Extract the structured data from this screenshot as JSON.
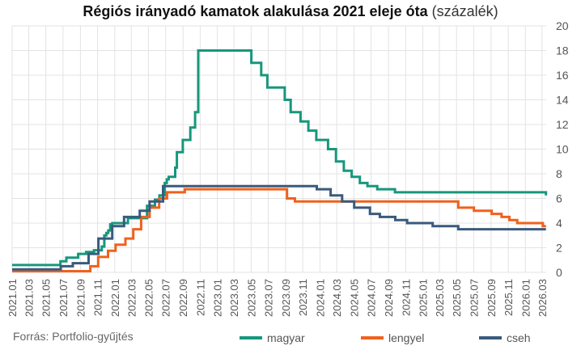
{
  "title_bold": "Régiós irányadó kamatok alakulása 2021 eleje óta",
  "title_light": "(százalék)",
  "source": "Forrás: Portfolio-gyűjtés",
  "colors": {
    "magyar": "#17977c",
    "lengyel": "#f0611d",
    "cseh": "#3a5a7d",
    "grid": "#e3e3e3"
  },
  "chart_data": {
    "type": "line",
    "title": "Régiós irányadó kamatok alakulása 2021 eleje óta (százalék)",
    "ylim": [
      0,
      20
    ],
    "yticks": [
      "0",
      "2",
      "4",
      "6",
      "8",
      "10",
      "12",
      "14",
      "16",
      "18",
      "20"
    ],
    "x_range": [
      "2021.01",
      "2026.03"
    ],
    "xticks": [
      "2021.01",
      "2021.03",
      "2021.05",
      "2021.07",
      "2021.09",
      "2021.11",
      "2022.01",
      "2022.03",
      "2022.05",
      "2022.07",
      "2022.09",
      "2022.11",
      "2023.01",
      "2023.03",
      "2023.05",
      "2023.07",
      "2023.09",
      "2023.11",
      "2024.01",
      "2024.03",
      "2024.05",
      "2024.07",
      "2024.09",
      "2024.11",
      "2025.01",
      "2025.03",
      "2025.05",
      "2025.07",
      "2025.09",
      "2025.11",
      "2026.01",
      "2026.03"
    ],
    "grid": true,
    "legend_position": "bottom",
    "series": [
      {
        "name": "magyar",
        "color": "#17977c",
        "points": [
          [
            "2021-01-01",
            0.6
          ],
          [
            "2021-06-22",
            0.9
          ],
          [
            "2021-07-13",
            1.2
          ],
          [
            "2021-08-24",
            1.5
          ],
          [
            "2021-09-21",
            1.65
          ],
          [
            "2021-10-19",
            1.8
          ],
          [
            "2021-11-16",
            2.1
          ],
          [
            "2021-11-25",
            3.0
          ],
          [
            "2021-12-02",
            3.2
          ],
          [
            "2021-12-09",
            3.4
          ],
          [
            "2021-12-16",
            3.9
          ],
          [
            "2021-12-23",
            4.0
          ],
          [
            "2022-01-06",
            4.0
          ],
          [
            "2022-01-13",
            4.0
          ],
          [
            "2022-01-25",
            4.0
          ],
          [
            "2022-02-17",
            4.4
          ],
          [
            "2022-03-22",
            4.4
          ],
          [
            "2022-04-26",
            5.4
          ],
          [
            "2022-05-24",
            5.9
          ],
          [
            "2022-06-09",
            6.25
          ],
          [
            "2022-06-14",
            6.25
          ],
          [
            "2022-06-28",
            7.25
          ],
          [
            "2022-07-05",
            7.55
          ],
          [
            "2022-07-12",
            7.75
          ],
          [
            "2022-07-21",
            7.75
          ],
          [
            "2022-08-04",
            8.5
          ],
          [
            "2022-08-10",
            9.75
          ],
          [
            "2022-08-31",
            10.75
          ],
          [
            "2022-09-27",
            11.75
          ],
          [
            "2022-10-14",
            13.0
          ],
          [
            "2022-10-25",
            18.0
          ],
          [
            "2023-05-01",
            18.0
          ],
          [
            "2023-05-02",
            17.0
          ],
          [
            "2023-06-06",
            16.0
          ],
          [
            "2023-06-28",
            15.0
          ],
          [
            "2023-08-29",
            14.0
          ],
          [
            "2023-09-19",
            13.0
          ],
          [
            "2023-10-24",
            12.25
          ],
          [
            "2023-11-21",
            11.5
          ],
          [
            "2023-12-19",
            10.75
          ],
          [
            "2024-01-30",
            10.0
          ],
          [
            "2024-02-27",
            9.0
          ],
          [
            "2024-03-26",
            8.25
          ],
          [
            "2024-04-23",
            7.75
          ],
          [
            "2024-05-22",
            7.25
          ],
          [
            "2024-06-18",
            7.0
          ],
          [
            "2024-07-23",
            6.75
          ],
          [
            "2024-09-24",
            6.5
          ],
          [
            "2026-02-24",
            6.5
          ],
          [
            "2026-03-15",
            6.25
          ]
        ]
      },
      {
        "name": "lengyel",
        "color": "#f0611d",
        "points": [
          [
            "2021-01-01",
            0.1
          ],
          [
            "2021-10-06",
            0.5
          ],
          [
            "2021-11-03",
            1.25
          ],
          [
            "2021-12-08",
            1.75
          ],
          [
            "2022-01-04",
            2.25
          ],
          [
            "2022-02-08",
            2.75
          ],
          [
            "2022-03-08",
            3.5
          ],
          [
            "2022-04-05",
            4.5
          ],
          [
            "2022-05-05",
            5.25
          ],
          [
            "2022-06-08",
            6.0
          ],
          [
            "2022-07-06",
            6.5
          ],
          [
            "2022-09-07",
            6.75
          ],
          [
            "2023-09-06",
            6.0
          ],
          [
            "2023-10-04",
            5.75
          ],
          [
            "2025-05-07",
            5.25
          ],
          [
            "2025-07-02",
            5.0
          ],
          [
            "2025-09-03",
            4.75
          ],
          [
            "2025-10-08",
            4.5
          ],
          [
            "2025-11-05",
            4.25
          ],
          [
            "2025-12-03",
            4.0
          ],
          [
            "2026-03-04",
            3.75
          ],
          [
            "2026-03-15",
            3.75
          ]
        ]
      },
      {
        "name": "cseh",
        "color": "#3a5a7d",
        "points": [
          [
            "2021-01-01",
            0.25
          ],
          [
            "2021-06-23",
            0.5
          ],
          [
            "2021-08-05",
            0.75
          ],
          [
            "2021-09-30",
            1.5
          ],
          [
            "2021-11-04",
            2.75
          ],
          [
            "2021-12-23",
            3.75
          ],
          [
            "2022-02-03",
            4.5
          ],
          [
            "2022-03-31",
            5.0
          ],
          [
            "2022-05-05",
            5.75
          ],
          [
            "2022-06-22",
            7.0
          ],
          [
            "2023-12-21",
            6.75
          ],
          [
            "2024-02-08",
            6.25
          ],
          [
            "2024-03-20",
            5.75
          ],
          [
            "2024-05-02",
            5.25
          ],
          [
            "2024-06-27",
            4.75
          ],
          [
            "2024-08-01",
            4.5
          ],
          [
            "2024-09-25",
            4.25
          ],
          [
            "2024-11-06",
            4.0
          ],
          [
            "2025-02-05",
            3.75
          ],
          [
            "2025-05-07",
            3.5
          ],
          [
            "2026-03-15",
            3.5
          ]
        ]
      }
    ]
  }
}
